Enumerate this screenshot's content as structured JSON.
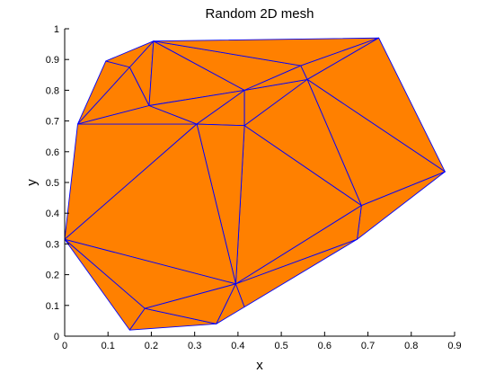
{
  "chart_data": {
    "type": "mesh",
    "title": "Random 2D mesh",
    "xlabel": "x",
    "ylabel": "y",
    "xlim": [
      0,
      0.9
    ],
    "ylim": [
      0,
      1
    ],
    "xticks": [
      0,
      0.1,
      0.2,
      0.3,
      0.4,
      0.5,
      0.6,
      0.7,
      0.8,
      0.9
    ],
    "xtick_labels": [
      "0",
      "0.1",
      "0.2",
      "0.3",
      "0.4",
      "0.5",
      "0.6",
      "0.7",
      "0.8",
      "0.9"
    ],
    "yticks": [
      0,
      0.1,
      0.2,
      0.3,
      0.4,
      0.5,
      0.6,
      0.7,
      0.8,
      0.9,
      1
    ],
    "ytick_labels": [
      "0",
      "0.1",
      "0.2",
      "0.3",
      "0.4",
      "0.5",
      "0.6",
      "0.7",
      "0.8",
      "0.9",
      "1"
    ],
    "grid": false,
    "colors": {
      "face": "#ff8000",
      "edge": "#0000ff",
      "axes": "#000000"
    },
    "vertices": [
      [
        0.0,
        0.315
      ],
      [
        0.03,
        0.69
      ],
      [
        0.095,
        0.895
      ],
      [
        0.15,
        0.02
      ],
      [
        0.185,
        0.09
      ],
      [
        0.15,
        0.875
      ],
      [
        0.205,
        0.96
      ],
      [
        0.195,
        0.75
      ],
      [
        0.305,
        0.69
      ],
      [
        0.35,
        0.04
      ],
      [
        0.395,
        0.17
      ],
      [
        0.415,
        0.095
      ],
      [
        0.415,
        0.685
      ],
      [
        0.415,
        0.8
      ],
      [
        0.545,
        0.88
      ],
      [
        0.56,
        0.835
      ],
      [
        0.685,
        0.425
      ],
      [
        0.675,
        0.315
      ],
      [
        0.725,
        0.97
      ],
      [
        0.878,
        0.535
      ]
    ],
    "triangles": [
      [
        0,
        1,
        8
      ],
      [
        1,
        2,
        5
      ],
      [
        1,
        5,
        7
      ],
      [
        5,
        6,
        7
      ],
      [
        2,
        5,
        6
      ],
      [
        1,
        7,
        8
      ],
      [
        6,
        7,
        13
      ],
      [
        7,
        8,
        13
      ],
      [
        6,
        13,
        14
      ],
      [
        6,
        14,
        18
      ],
      [
        8,
        12,
        13
      ],
      [
        12,
        13,
        15
      ],
      [
        13,
        14,
        15
      ],
      [
        14,
        15,
        18
      ],
      [
        15,
        18,
        19
      ],
      [
        15,
        16,
        19
      ],
      [
        12,
        15,
        16
      ],
      [
        16,
        17,
        19
      ],
      [
        10,
        12,
        16
      ],
      [
        10,
        16,
        17
      ],
      [
        8,
        10,
        12
      ],
      [
        0,
        8,
        10
      ],
      [
        0,
        4,
        10
      ],
      [
        0,
        3,
        4
      ],
      [
        3,
        4,
        9
      ],
      [
        4,
        9,
        10
      ],
      [
        9,
        10,
        11
      ],
      [
        10,
        11,
        17
      ]
    ]
  }
}
